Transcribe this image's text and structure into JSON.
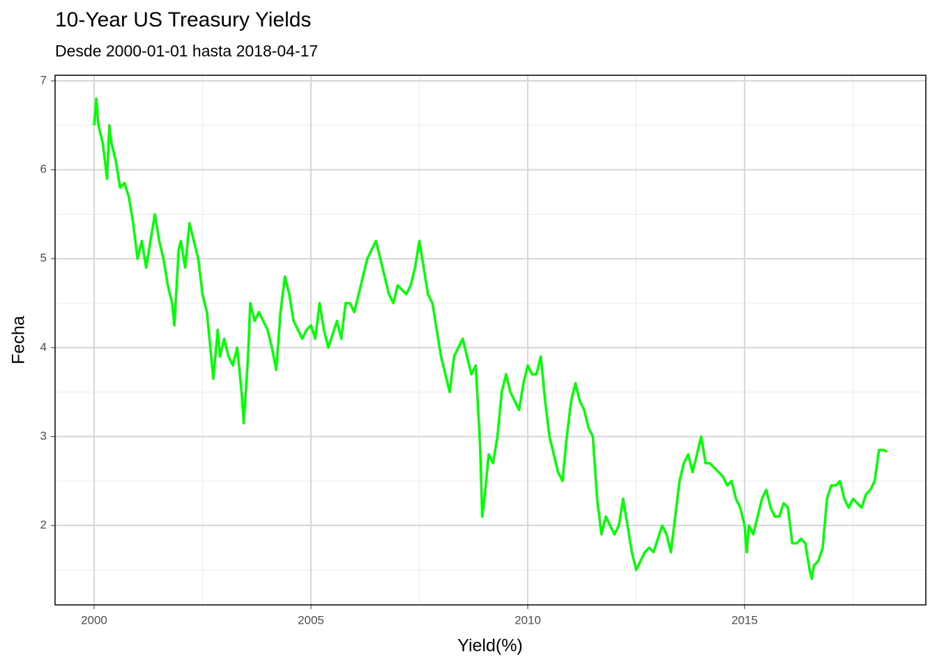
{
  "chart_data": {
    "type": "line",
    "title": "10-Year US Treasury Yields",
    "subtitle": "Desde 2000-01-01 hasta 2018-04-17",
    "x_label": "Yield(%)",
    "y_label": "Fecha",
    "xlim": [
      1999.1,
      2019.18
    ],
    "xticks": [
      2000,
      2005,
      2010,
      2015
    ],
    "ylim": [
      1.107,
      7.063
    ],
    "yticks": [
      2,
      3,
      4,
      5,
      6,
      7
    ],
    "grid": true,
    "x": [
      2000.0,
      2000.05,
      2000.1,
      2000.2,
      2000.3,
      2000.35,
      2000.4,
      2000.5,
      2000.6,
      2000.7,
      2000.8,
      2000.9,
      2001.0,
      2001.1,
      2001.2,
      2001.3,
      2001.4,
      2001.5,
      2001.6,
      2001.7,
      2001.8,
      2001.85,
      2001.95,
      2002.0,
      2002.1,
      2002.2,
      2002.3,
      2002.4,
      2002.5,
      2002.6,
      2002.7,
      2002.75,
      2002.85,
      2002.9,
      2003.0,
      2003.1,
      2003.2,
      2003.3,
      2003.4,
      2003.45,
      2003.55,
      2003.6,
      2003.7,
      2003.8,
      2003.9,
      2004.0,
      2004.1,
      2004.2,
      2004.3,
      2004.4,
      2004.5,
      2004.6,
      2004.7,
      2004.8,
      2004.9,
      2005.0,
      2005.1,
      2005.2,
      2005.3,
      2005.4,
      2005.5,
      2005.6,
      2005.7,
      2005.8,
      2005.9,
      2006.0,
      2006.1,
      2006.2,
      2006.3,
      2006.4,
      2006.5,
      2006.6,
      2006.7,
      2006.8,
      2006.9,
      2007.0,
      2007.1,
      2007.2,
      2007.3,
      2007.4,
      2007.5,
      2007.6,
      2007.7,
      2007.8,
      2007.9,
      2008.0,
      2008.1,
      2008.2,
      2008.3,
      2008.4,
      2008.5,
      2008.6,
      2008.7,
      2008.8,
      2008.9,
      2008.95,
      2009.0,
      2009.1,
      2009.2,
      2009.3,
      2009.4,
      2009.5,
      2009.6,
      2009.7,
      2009.8,
      2009.9,
      2010.0,
      2010.1,
      2010.2,
      2010.3,
      2010.4,
      2010.5,
      2010.6,
      2010.7,
      2010.8,
      2010.9,
      2011.0,
      2011.1,
      2011.2,
      2011.3,
      2011.4,
      2011.5,
      2011.6,
      2011.7,
      2011.8,
      2011.9,
      2012.0,
      2012.1,
      2012.2,
      2012.3,
      2012.4,
      2012.5,
      2012.6,
      2012.7,
      2012.8,
      2012.9,
      2013.0,
      2013.1,
      2013.2,
      2013.3,
      2013.4,
      2013.5,
      2013.6,
      2013.7,
      2013.8,
      2013.9,
      2014.0,
      2014.1,
      2014.2,
      2014.3,
      2014.4,
      2014.5,
      2014.6,
      2014.7,
      2014.8,
      2014.9,
      2015.0,
      2015.05,
      2015.1,
      2015.2,
      2015.3,
      2015.4,
      2015.5,
      2015.6,
      2015.7,
      2015.8,
      2015.9,
      2016.0,
      2016.1,
      2016.2,
      2016.3,
      2016.4,
      2016.5,
      2016.55,
      2016.6,
      2016.7,
      2016.8,
      2016.9,
      2017.0,
      2017.1,
      2017.2,
      2017.3,
      2017.4,
      2017.5,
      2017.6,
      2017.7,
      2017.8,
      2017.9,
      2018.0,
      2018.1,
      2018.2,
      2018.29
    ],
    "series": [
      {
        "color": "#00ff00",
        "values": [
          6.5,
          6.8,
          6.5,
          6.3,
          5.9,
          6.5,
          6.3,
          6.1,
          5.8,
          5.85,
          5.7,
          5.4,
          5.0,
          5.2,
          4.9,
          5.2,
          5.5,
          5.2,
          5.0,
          4.7,
          4.5,
          4.25,
          5.1,
          5.2,
          4.9,
          5.4,
          5.2,
          5.0,
          4.6,
          4.4,
          3.9,
          3.65,
          4.2,
          3.9,
          4.1,
          3.9,
          3.8,
          4.0,
          3.5,
          3.15,
          3.9,
          4.5,
          4.3,
          4.4,
          4.3,
          4.2,
          4.0,
          3.75,
          4.4,
          4.8,
          4.6,
          4.3,
          4.2,
          4.1,
          4.2,
          4.25,
          4.1,
          4.5,
          4.2,
          4.0,
          4.15,
          4.3,
          4.1,
          4.5,
          4.5,
          4.4,
          4.6,
          4.8,
          5.0,
          5.1,
          5.2,
          5.0,
          4.8,
          4.6,
          4.5,
          4.7,
          4.65,
          4.6,
          4.7,
          4.9,
          5.2,
          4.9,
          4.6,
          4.5,
          4.2,
          3.9,
          3.7,
          3.5,
          3.9,
          4.0,
          4.1,
          3.9,
          3.7,
          3.8,
          2.9,
          2.1,
          2.3,
          2.8,
          2.7,
          3.0,
          3.5,
          3.7,
          3.5,
          3.4,
          3.3,
          3.6,
          3.8,
          3.7,
          3.7,
          3.9,
          3.4,
          3.0,
          2.8,
          2.6,
          2.5,
          3.0,
          3.4,
          3.6,
          3.4,
          3.3,
          3.1,
          3.0,
          2.3,
          1.9,
          2.1,
          2.0,
          1.9,
          2.0,
          2.3,
          2.0,
          1.7,
          1.5,
          1.6,
          1.7,
          1.75,
          1.7,
          1.85,
          2.0,
          1.9,
          1.7,
          2.1,
          2.5,
          2.7,
          2.8,
          2.6,
          2.8,
          3.0,
          2.7,
          2.7,
          2.65,
          2.6,
          2.55,
          2.45,
          2.5,
          2.3,
          2.2,
          2.0,
          1.7,
          2.0,
          1.9,
          2.1,
          2.3,
          2.4,
          2.2,
          2.1,
          2.1,
          2.25,
          2.2,
          1.8,
          1.8,
          1.85,
          1.8,
          1.5,
          1.4,
          1.55,
          1.6,
          1.75,
          2.3,
          2.45,
          2.45,
          2.5,
          2.3,
          2.2,
          2.3,
          2.25,
          2.2,
          2.35,
          2.4,
          2.5,
          2.85,
          2.85,
          2.83
        ]
      }
    ]
  }
}
